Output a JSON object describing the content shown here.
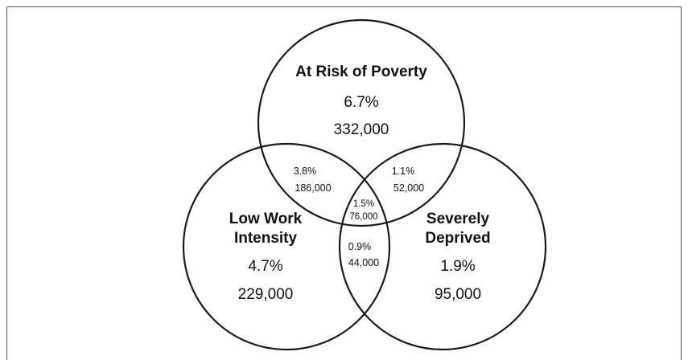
{
  "sets": {
    "poverty": {
      "label": "At Risk of Poverty",
      "percent": "6.7%",
      "count": "332,000"
    },
    "work": {
      "label_line1": "Low Work",
      "label_line2": "Intensity",
      "percent": "4.7%",
      "count": "229,000"
    },
    "deprived": {
      "label_line1": "Severely",
      "label_line2": "Deprived",
      "percent": "1.9%",
      "count": "95,000"
    }
  },
  "overlaps": {
    "poverty_work": {
      "percent": "3.8%",
      "count": "186,000"
    },
    "poverty_deprived": {
      "percent": "1.1%",
      "count": "52,000"
    },
    "all_three": {
      "percent": "1.5%",
      "count": "76,000"
    },
    "work_deprived": {
      "percent": "0.9%",
      "count": "44,000"
    }
  }
}
